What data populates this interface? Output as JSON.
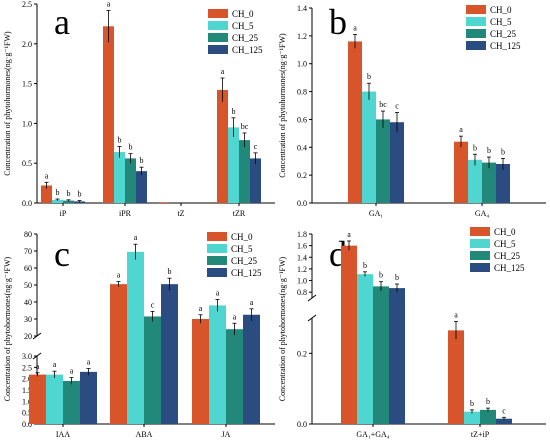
{
  "colors": {
    "CH_0": "#d8542b",
    "CH_5": "#50d6d0",
    "CH_25": "#21887a",
    "CH_125": "#2b4c80"
  },
  "chart_data": [
    {
      "panel": "a",
      "type": "bar",
      "ylabel": "Concentration of phytohormones(ng·g⁻¹FW)",
      "ylim": [
        0,
        2.5
      ],
      "yticks": [
        "0.0",
        "0.5",
        "1.0",
        "1.5",
        "2.0",
        "2.5"
      ],
      "ytick_values": [
        0,
        0.5,
        1,
        1.5,
        2,
        2.5
      ],
      "categories": [
        "iP",
        "iPR",
        "tZ",
        "tZR"
      ],
      "legend": [
        "CH_0",
        "CH_5",
        "CH_25",
        "CH_125"
      ],
      "legend_position": "top-right",
      "series": [
        {
          "name": "CH_0",
          "values": [
            0.22,
            2.22,
            0.01,
            1.42
          ],
          "errors": [
            0.04,
            0.2,
            0,
            0.15
          ],
          "letters": [
            "a",
            "a",
            "",
            "a"
          ]
        },
        {
          "name": "CH_5",
          "values": [
            0.04,
            0.64,
            0,
            0.95
          ],
          "errors": [
            0.01,
            0.07,
            0,
            0.12
          ],
          "letters": [
            "b",
            "b",
            "",
            "b"
          ]
        },
        {
          "name": "CH_25",
          "values": [
            0.03,
            0.56,
            0,
            0.79
          ],
          "errors": [
            0.01,
            0.06,
            0,
            0.09
          ],
          "letters": [
            "b",
            "b",
            "",
            "bc"
          ]
        },
        {
          "name": "CH_125",
          "values": [
            0.02,
            0.4,
            0,
            0.56
          ],
          "errors": [
            0.01,
            0.05,
            0,
            0.07
          ],
          "letters": [
            "b",
            "b",
            "",
            "c"
          ]
        }
      ]
    },
    {
      "panel": "b",
      "type": "bar",
      "ylabel": "Concentration of phytohormones(ng·g⁻¹FW)",
      "ylim": [
        0,
        1.4
      ],
      "yticks": [
        "0.0",
        "0.2",
        "0.4",
        "0.6",
        "0.8",
        "1.0",
        "1.2",
        "1.4"
      ],
      "ytick_values": [
        0,
        0.2,
        0.4,
        0.6,
        0.8,
        1,
        1.2,
        1.4
      ],
      "categories": [
        "GA₁",
        "GA₄"
      ],
      "legend": [
        "CH_0",
        "CH_5",
        "CH_25",
        "CH_125"
      ],
      "legend_position": "top-right",
      "series": [
        {
          "name": "CH_0",
          "values": [
            1.16,
            0.44
          ],
          "errors": [
            0.05,
            0.04
          ],
          "letters": [
            "a",
            "a"
          ]
        },
        {
          "name": "CH_5",
          "values": [
            0.8,
            0.31
          ],
          "errors": [
            0.06,
            0.04
          ],
          "letters": [
            "b",
            "b"
          ]
        },
        {
          "name": "CH_25",
          "values": [
            0.6,
            0.29
          ],
          "errors": [
            0.06,
            0.04
          ],
          "letters": [
            "bc",
            "b"
          ]
        },
        {
          "name": "CH_125",
          "values": [
            0.58,
            0.28
          ],
          "errors": [
            0.07,
            0.04
          ],
          "letters": [
            "c",
            "b"
          ]
        }
      ]
    },
    {
      "panel": "c",
      "type": "bar",
      "ylabel": "Concentration of phytohormones(ng·g⁻¹FW)",
      "axis_break": [
        3.0,
        20
      ],
      "ylim_lower": [
        0,
        3.0
      ],
      "yticks_lower": [
        "0.0",
        "0.5",
        "1.0",
        "1.5",
        "2.0",
        "2.5",
        "3.0"
      ],
      "ytick_values_lower": [
        0,
        0.5,
        1,
        1.5,
        2,
        2.5,
        3
      ],
      "ylim_upper": [
        20,
        80
      ],
      "yticks_upper": [
        "20",
        "30",
        "40",
        "50",
        "60",
        "70",
        "80"
      ],
      "ytick_values_upper": [
        20,
        30,
        40,
        50,
        60,
        70,
        80
      ],
      "categories": [
        "IAA",
        "ABA",
        "JA"
      ],
      "legend": [
        "CH_0",
        "CH_5",
        "CH_25",
        "CH_125"
      ],
      "legend_position": "top-right",
      "series": [
        {
          "name": "CH_0",
          "values": [
            2.18,
            50.5,
            30
          ],
          "errors": [
            0.08,
            1.5,
            2.5
          ],
          "letters": [
            "a",
            "a",
            "a"
          ]
        },
        {
          "name": "CH_5",
          "values": [
            2.18,
            69.5,
            38
          ],
          "errors": [
            0.15,
            4.5,
            3.5
          ],
          "letters": [
            "a",
            "a",
            "a"
          ]
        },
        {
          "name": "CH_25",
          "values": [
            1.9,
            31.5,
            24
          ],
          "errors": [
            0.15,
            3,
            3.5
          ],
          "letters": [
            "a",
            "c",
            "a"
          ]
        },
        {
          "name": "CH_125",
          "values": [
            2.3,
            50.5,
            32.5
          ],
          "errors": [
            0.15,
            3.5,
            3.5
          ],
          "letters": [
            "a",
            "b",
            "a"
          ]
        }
      ]
    },
    {
      "panel": "d",
      "type": "bar",
      "ylabel": "Concentration of phytohormones(ng·g⁻¹FW)",
      "axis_break": [
        0.3,
        0.7
      ],
      "ylim_lower": [
        0,
        0.3
      ],
      "yticks_lower": [
        "0.0",
        "0.2"
      ],
      "ytick_values_lower": [
        0,
        0.2
      ],
      "ylim_upper": [
        0.7,
        1.8
      ],
      "yticks_upper": [
        "0.8",
        "1.0",
        "1.2",
        "1.4",
        "1.6",
        "1.8"
      ],
      "ytick_values_upper": [
        0.8,
        1.0,
        1.2,
        1.4,
        1.6,
        1.8
      ],
      "categories": [
        "GA₁+GA₄",
        "tZ+iP"
      ],
      "legend": [
        "CH_0",
        "CH_5",
        "CH_25",
        "CH_125"
      ],
      "legend_position": "top-right",
      "series": [
        {
          "name": "CH_0",
          "values": [
            1.6,
            0.265
          ],
          "errors": [
            0.08,
            0.025
          ],
          "letters": [
            "a",
            "a"
          ]
        },
        {
          "name": "CH_5",
          "values": [
            1.11,
            0.035
          ],
          "errors": [
            0.04,
            0.005
          ],
          "letters": [
            "b",
            "b"
          ]
        },
        {
          "name": "CH_25",
          "values": [
            0.9,
            0.04
          ],
          "errors": [
            0.08,
            0.005
          ],
          "letters": [
            "b",
            "b"
          ]
        },
        {
          "name": "CH_125",
          "values": [
            0.87,
            0.015
          ],
          "errors": [
            0.07,
            0.004
          ],
          "letters": [
            "b",
            "c"
          ]
        }
      ]
    }
  ]
}
